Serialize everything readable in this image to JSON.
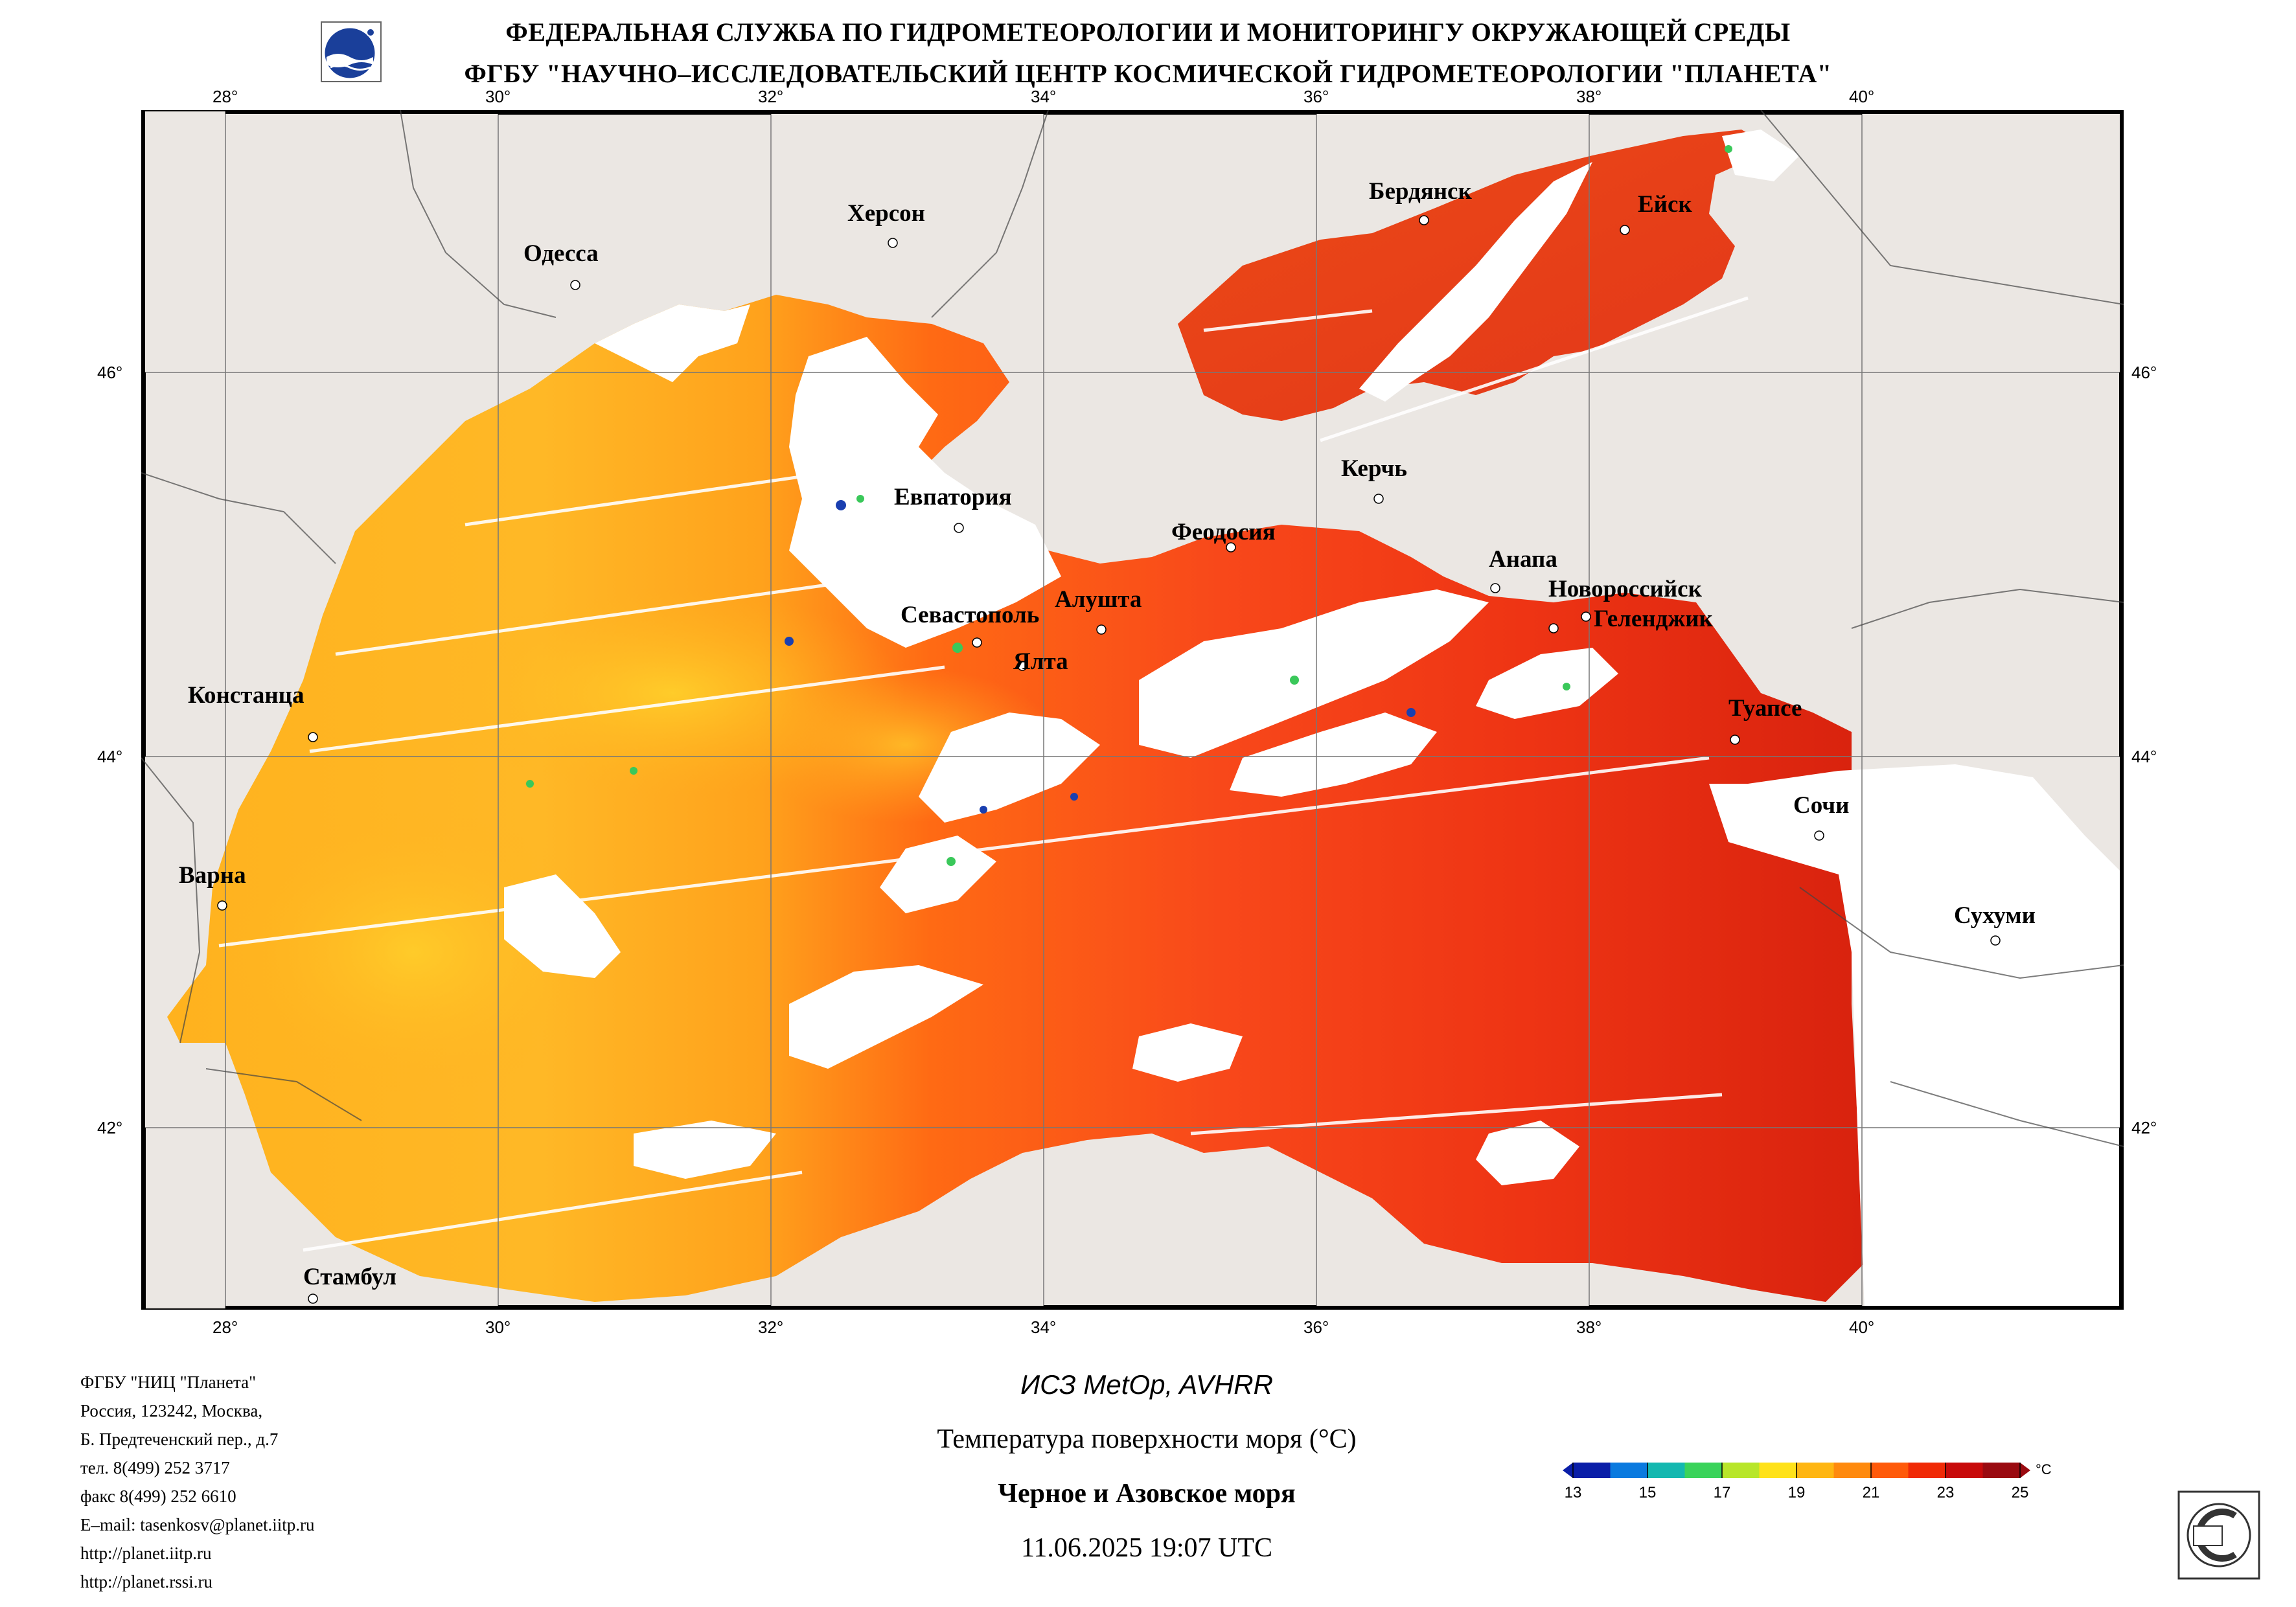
{
  "header": {
    "line1": "ФЕДЕРАЛЬНАЯ СЛУЖБА ПО ГИДРОМЕТЕОРОЛОГИИ И МОНИТОРИНГУ ОКРУЖАЮЩЕЙ СРЕДЫ",
    "line2": "ФГБУ \"НАУЧНО–ИССЛЕДОВАТЕЛЬСКИЙ ЦЕНТР КОСМИЧЕСКОЙ ГИДРОМЕТЕОРОЛОГИИ \"ПЛАНЕТА\""
  },
  "map": {
    "lon_labels": [
      "28°",
      "30°",
      "32°",
      "34°",
      "36°",
      "38°",
      "40°"
    ],
    "lat_labels": [
      "46°",
      "44°",
      "42°"
    ],
    "cities": [
      {
        "name": "Одесса"
      },
      {
        "name": "Херсон"
      },
      {
        "name": "Бердянск"
      },
      {
        "name": "Ейск"
      },
      {
        "name": "Евпатория"
      },
      {
        "name": "Керчь"
      },
      {
        "name": "Феодосия"
      },
      {
        "name": "Анапа"
      },
      {
        "name": "Новороссийск"
      },
      {
        "name": "Геленджик"
      },
      {
        "name": "Алушта"
      },
      {
        "name": "Севастополь"
      },
      {
        "name": "Ялта"
      },
      {
        "name": "Констанца"
      },
      {
        "name": "Туапсе"
      },
      {
        "name": "Сочи"
      },
      {
        "name": "Варна"
      },
      {
        "name": "Сухуми"
      },
      {
        "name": "Стамбул"
      }
    ]
  },
  "footer": {
    "org_lines": [
      "ФГБУ \"НИЦ \"Планета\"",
      "Россия, 123242, Москва,",
      "Б. Предтеченский пер., д.7",
      "тел. 8(499) 252 3717",
      "факс 8(499) 252 6610",
      "E–mail: tasenkosv@planet.iitp.ru",
      "http://planet.iitp.ru",
      "http://planet.rssi.ru"
    ],
    "satellite": "ИСЗ MetOp, AVHRR",
    "parameter": "Температура поверхности моря (°С)",
    "region": "Черное и Азовское моря",
    "datetime": "11.06.2025 19:07 UTC"
  },
  "colorbar": {
    "unit": "°С",
    "ticks": [
      "13",
      "15",
      "17",
      "19",
      "21",
      "23",
      "25"
    ],
    "colors": [
      "#0a1ea8",
      "#0a7adf",
      "#14b8b0",
      "#3ad35a",
      "#b8e62a",
      "#ffe21a",
      "#ffb612",
      "#ff8a0e",
      "#ff5a0a",
      "#f02a06",
      "#c80a0a",
      "#9a0a10"
    ]
  },
  "colors": {
    "land": "#ebe7e3",
    "no_data": "#ffffff",
    "sst_warm": "#f03c14",
    "sst_mid": "#ff9a1e",
    "sst_cool": "#ffce2a"
  }
}
